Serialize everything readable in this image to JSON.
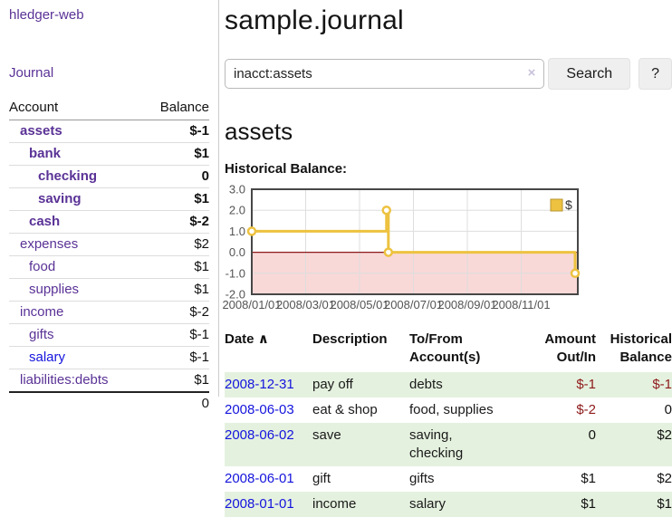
{
  "colors": {
    "link_purple": "#5a3296",
    "link_blue": "#1414dd",
    "negative_red": "#8e1a1a",
    "negative_dim_red": "#c98f8f",
    "row_shade_green": "#e5f1df",
    "series_yellow": "#edc240"
  },
  "sidebar": {
    "brand": "hledger-web",
    "journal_link": "Journal",
    "accounts": {
      "headers": {
        "account": "Account",
        "balance": "Balance"
      },
      "rows": [
        {
          "name": "assets",
          "balance": "$-1",
          "depth": 1,
          "bold": true,
          "name_color": "purple",
          "balance_style": "neg"
        },
        {
          "name": "bank",
          "balance": "$1",
          "depth": 2,
          "bold": true,
          "name_color": "purple",
          "balance_style": "pos"
        },
        {
          "name": "checking",
          "balance": "0",
          "depth": 3,
          "bold": true,
          "name_color": "purple",
          "balance_style": "pos"
        },
        {
          "name": "saving",
          "balance": "$1",
          "depth": 3,
          "bold": true,
          "name_color": "purple",
          "balance_style": "pos"
        },
        {
          "name": "cash",
          "balance": "$-2",
          "depth": 2,
          "bold": true,
          "name_color": "purple",
          "balance_style": "neg"
        },
        {
          "name": "expenses",
          "balance": "$2",
          "depth": 1,
          "bold": false,
          "name_color": "purple",
          "balance_style": "pos"
        },
        {
          "name": "food",
          "balance": "$1",
          "depth": 2,
          "bold": false,
          "name_color": "purple",
          "balance_style": "pos"
        },
        {
          "name": "supplies",
          "balance": "$1",
          "depth": 2,
          "bold": false,
          "name_color": "purple",
          "balance_style": "pos"
        },
        {
          "name": "income",
          "balance": "$-2",
          "depth": 1,
          "bold": false,
          "name_color": "purple",
          "balance_style": "neg-dim"
        },
        {
          "name": "gifts",
          "balance": "$-1",
          "depth": 2,
          "bold": false,
          "name_color": "purple",
          "balance_style": "neg-dim"
        },
        {
          "name": "salary",
          "balance": "$-1",
          "depth": 2,
          "bold": false,
          "name_color": "blue",
          "balance_style": "neg-dim"
        },
        {
          "name": "liabilities:debts",
          "balance": "$1",
          "depth": 1,
          "bold": false,
          "name_color": "purple",
          "balance_style": "pos"
        }
      ],
      "total": "0"
    }
  },
  "main": {
    "title": "sample.journal",
    "search": {
      "value": "inacct:assets",
      "clear_icon": "×",
      "button": "Search",
      "help": "?"
    },
    "account_heading": "assets",
    "chart_title": "Historical Balance:"
  },
  "chart_data": {
    "type": "line",
    "title": "Historical Balance",
    "step": true,
    "legend": [
      {
        "label": "$",
        "color": "#edc240"
      }
    ],
    "legend_position": "top-right",
    "series_color": "#edc240",
    "x": [
      "2008-01-01",
      "2008-06-01",
      "2008-06-03",
      "2008-12-31"
    ],
    "x_months": [
      0,
      5.0,
      5.07,
      12.0
    ],
    "y": [
      1,
      2,
      0,
      -1
    ],
    "xlabel": "",
    "ylabel": "",
    "xlim_months": [
      0,
      12.1
    ],
    "ylim": [
      -2,
      3
    ],
    "yticks": [
      "3.0",
      "2.0",
      "1.0",
      "0.0",
      "-1.0",
      "-2.0"
    ],
    "xticks": {
      "months": [
        0,
        2,
        4,
        6,
        8,
        10
      ],
      "labels": [
        "2008/01/01",
        "2008/03/01",
        "2008/05/01",
        "2008/07/01",
        "2008/09/01",
        "2008/11/01"
      ]
    },
    "grid": true,
    "negative_region_fill": "#f9d8d8",
    "zero_line_color": "#8b1a1a"
  },
  "register": {
    "headers": {
      "date": "Date",
      "sort_icon": "∧",
      "description": "Description",
      "accounts": "To/From\nAccount(s)",
      "amount": "Amount\nOut/In",
      "balance": "Historical\nBalance"
    },
    "rows": [
      {
        "date": "2008-12-31",
        "description": "pay off",
        "accounts": "debts",
        "amount": "$-1",
        "balance": "$-1",
        "amount_neg": true,
        "balance_neg": true,
        "shaded": true
      },
      {
        "date": "2008-06-03",
        "description": "eat & shop",
        "accounts": "food, supplies",
        "amount": "$-2",
        "balance": "0",
        "amount_neg": true,
        "balance_neg": false,
        "shaded": false
      },
      {
        "date": "2008-06-02",
        "description": "save",
        "accounts": "saving,\nchecking",
        "amount": "0",
        "balance": "$2",
        "amount_neg": false,
        "balance_neg": false,
        "shaded": true
      },
      {
        "date": "2008-06-01",
        "description": "gift",
        "accounts": "gifts",
        "amount": "$1",
        "balance": "$2",
        "amount_neg": false,
        "balance_neg": false,
        "shaded": false
      },
      {
        "date": "2008-01-01",
        "description": "income",
        "accounts": "salary",
        "amount": "$1",
        "balance": "$1",
        "amount_neg": false,
        "balance_neg": false,
        "shaded": true
      }
    ]
  }
}
